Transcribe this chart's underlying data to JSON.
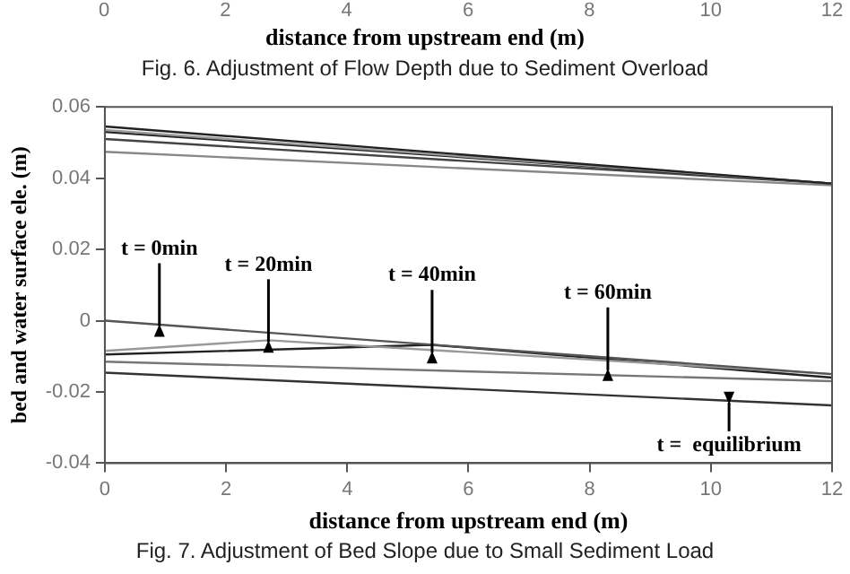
{
  "chart_data": {
    "type": "line",
    "x2label": "distance from upstream end (m)",
    "x2lim": [
      0,
      12
    ],
    "x2ticks": [
      0,
      2,
      4,
      6,
      8,
      10,
      12
    ],
    "xlabel": "distance from upstream end (m)",
    "ylabel": "bed and water surface ele. (m)",
    "xlim": [
      0,
      12
    ],
    "xticks": [
      0,
      2,
      4,
      6,
      8,
      10,
      12
    ],
    "ylim": [
      -0.04,
      0.06
    ],
    "yticks": [
      -0.04,
      -0.02,
      0,
      0.02,
      0.04,
      0.06
    ],
    "marker": "none",
    "series": [
      {
        "x": [
          0,
          12
        ],
        "values": [
          0.0545,
          0.0385
        ],
        "color": "#222222"
      },
      {
        "x": [
          0,
          12
        ],
        "values": [
          0.0535,
          0.0385
        ],
        "color": "#999999"
      },
      {
        "x": [
          0,
          12
        ],
        "values": [
          0.053,
          0.0385
        ],
        "color": "#222222"
      },
      {
        "x": [
          0,
          12
        ],
        "values": [
          0.051,
          0.0385
        ],
        "color": "#444444"
      },
      {
        "x": [
          0,
          12
        ],
        "values": [
          0.0474,
          0.038
        ],
        "color": "#888888"
      },
      {
        "x": [
          0,
          12
        ],
        "values": [
          0,
          -0.015
        ],
        "color": "#555555"
      },
      {
        "x": [
          0,
          2.7,
          12
        ],
        "values": [
          -0.0085,
          -0.0055,
          -0.015
        ],
        "color": "#999999"
      },
      {
        "x": [
          0,
          5.4,
          12
        ],
        "values": [
          -0.0095,
          -0.0068,
          -0.016
        ],
        "color": "#222222"
      },
      {
        "x": [
          0,
          12
        ],
        "values": [
          -0.0115,
          -0.017
        ],
        "color": "#777777"
      },
      {
        "x": [
          0,
          12
        ],
        "values": [
          -0.0146,
          -0.0238
        ],
        "color": "#333333"
      }
    ],
    "annotations": [
      "Fig. 6. Adjustment of Flow Depth due to Sediment Overload",
      {
        "text": "t = 0min",
        "x": 0.9,
        "y": -0.001
      },
      {
        "text": "t = 20min",
        "x": 2.7,
        "y": -0.0055
      },
      {
        "text": "t = 40min",
        "x": 5.4,
        "y": -0.0085
      },
      {
        "text": "t = 60min",
        "x": 8.3,
        "y": -0.0134
      },
      {
        "text": "t =  equilibrium",
        "x": 10.3,
        "y": -0.0235
      },
      "Fig. 7. Adjustment of Bed Slope due to Small Sediment Load"
    ]
  }
}
